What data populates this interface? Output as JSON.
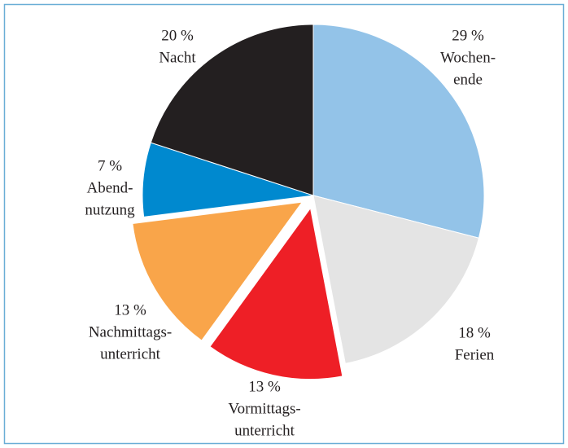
{
  "chart_data": {
    "type": "pie",
    "categories": [
      [
        "Wochen-",
        "ende"
      ],
      [
        "Ferien"
      ],
      [
        "Vormittags-",
        "unterricht"
      ],
      [
        "Nachmittags-",
        "unterricht"
      ],
      [
        "Abend-",
        "nutzung"
      ],
      [
        "Nacht"
      ]
    ],
    "values": [
      29,
      18,
      13,
      13,
      7,
      20
    ],
    "value_labels": [
      "29 %",
      "18 %",
      "13 %",
      "13 %",
      "7 %",
      "20 %"
    ],
    "colors": [
      "#93c3e8",
      "#e4e4e4",
      "#ee1f26",
      "#f9a54a",
      "#0089cf",
      "#231f20"
    ],
    "exploded": [
      false,
      false,
      true,
      true,
      false,
      false
    ]
  }
}
